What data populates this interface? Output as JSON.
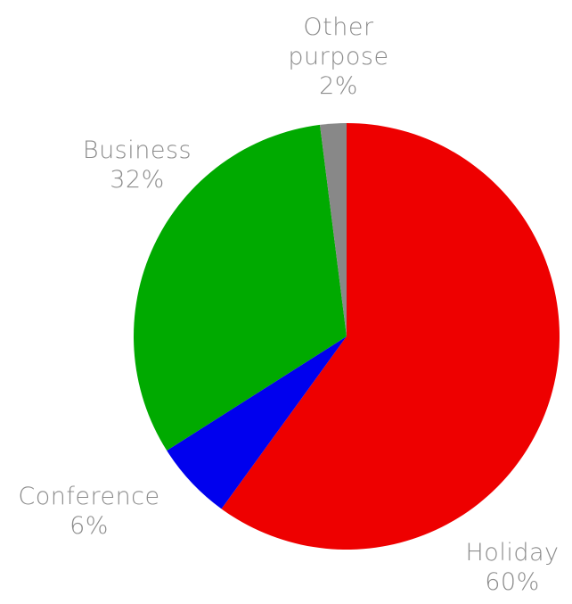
{
  "chart_data": {
    "type": "pie",
    "title": "",
    "start_angle_deg": 0,
    "direction": "clockwise",
    "slices": [
      {
        "label": "Holiday",
        "value": 60,
        "value_label": "60%",
        "color": "#ee0000"
      },
      {
        "label": "Conference",
        "value": 6,
        "value_label": "6%",
        "color": "#0000ee"
      },
      {
        "label": "Business",
        "value": 32,
        "value_label": "32%",
        "color": "#00aa00"
      },
      {
        "label": "Other purpose",
        "value": 2,
        "value_label": "2%",
        "color": "#888888"
      }
    ]
  },
  "labels": {
    "other": {
      "line1": "Other",
      "line2": "purpose",
      "line3": "2%"
    },
    "business": {
      "line1": "Business",
      "line2": "32%"
    },
    "conference": {
      "line1": "Conference",
      "line2": "6%"
    },
    "holiday": {
      "line1": "Holiday",
      "line2": "60%"
    }
  }
}
